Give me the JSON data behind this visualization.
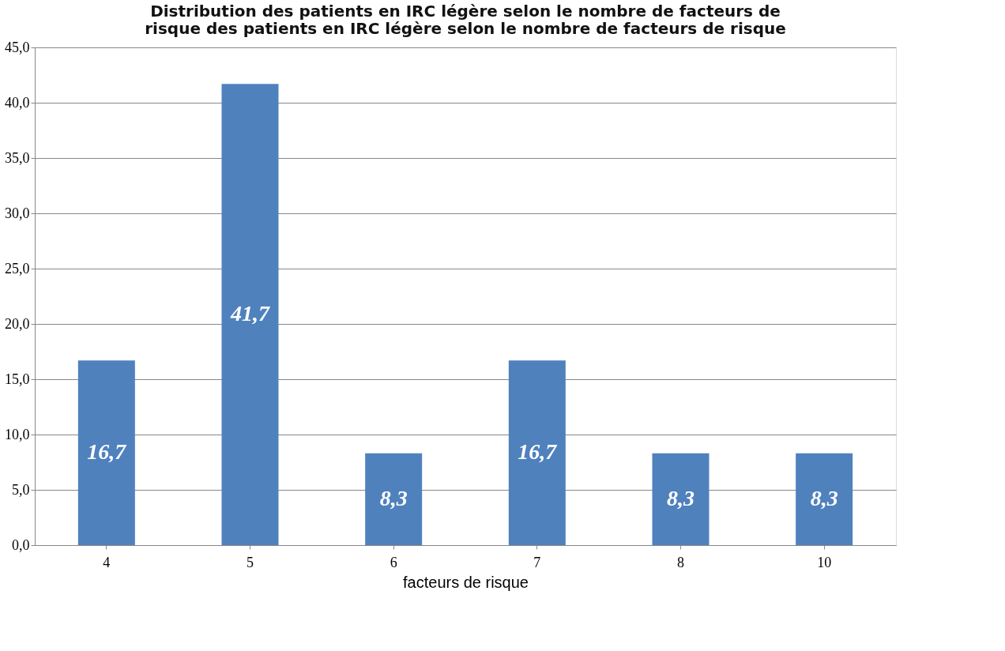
{
  "chart_data": {
    "type": "bar",
    "title": "Distribution des patients en IRC  légère selon le nombre de facteurs de risque des patients en IRC légère selon le nombre de facteurs de risque",
    "xlabel": "facteurs de risque",
    "categories": [
      "4",
      "5",
      "6",
      "7",
      "8",
      "10"
    ],
    "values": [
      16.7,
      41.7,
      8.3,
      16.7,
      8.3,
      8.3
    ],
    "value_labels": [
      "16,7",
      "41,7",
      "8,3",
      "16,7",
      "8,3",
      "8,3"
    ],
    "color": "#4f81bd",
    "ylim": [
      0,
      45
    ],
    "yticks": [
      {
        "value": 0,
        "label": "0,0"
      },
      {
        "value": 5,
        "label": "5,0"
      },
      {
        "value": 10,
        "label": "10,0"
      },
      {
        "value": 15,
        "label": "15,0"
      },
      {
        "value": 20,
        "label": "20,0"
      },
      {
        "value": 25,
        "label": "25,0"
      },
      {
        "value": 30,
        "label": "30,0"
      },
      {
        "value": 35,
        "label": "35,0"
      },
      {
        "value": 40,
        "label": "40,0"
      },
      {
        "value": 45,
        "label": "45,0"
      }
    ],
    "grid": "y"
  }
}
